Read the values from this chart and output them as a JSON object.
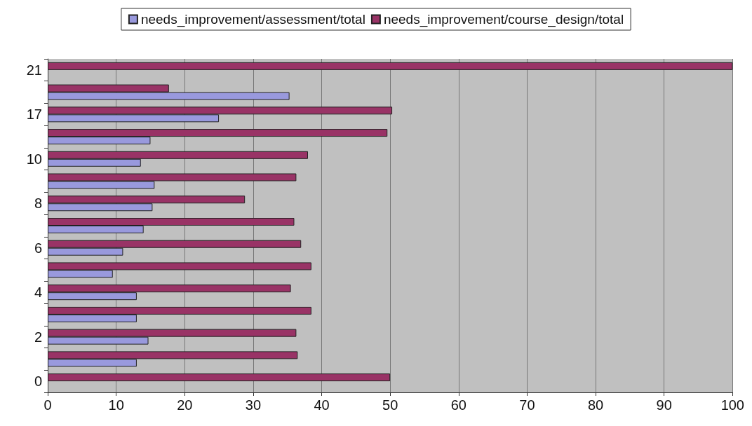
{
  "chart_data": {
    "type": "bar",
    "orientation": "horizontal",
    "categories": [
      "21",
      null,
      "17",
      null,
      "10",
      null,
      "8",
      null,
      "6",
      null,
      "4",
      null,
      "2",
      null,
      "0"
    ],
    "series": [
      {
        "name": "needs_improvement/assessment/total",
        "color": "#9999dd",
        "values": [
          null,
          35.3,
          25,
          15,
          13.6,
          15.6,
          15.3,
          14,
          11,
          9.5,
          13,
          13,
          14.7,
          13,
          null
        ]
      },
      {
        "name": "needs_improvement/course_design/total",
        "color": "#993366",
        "values": [
          100,
          17.7,
          50.3,
          49.6,
          38,
          36.3,
          28.8,
          36,
          37,
          38.5,
          35.5,
          38.5,
          36.3,
          36.5,
          50
        ]
      }
    ],
    "xlim": [
      0,
      100
    ],
    "xticks": [
      0,
      10,
      20,
      30,
      40,
      50,
      60,
      70,
      80,
      90,
      100
    ],
    "grid": "x",
    "legend": "top"
  }
}
